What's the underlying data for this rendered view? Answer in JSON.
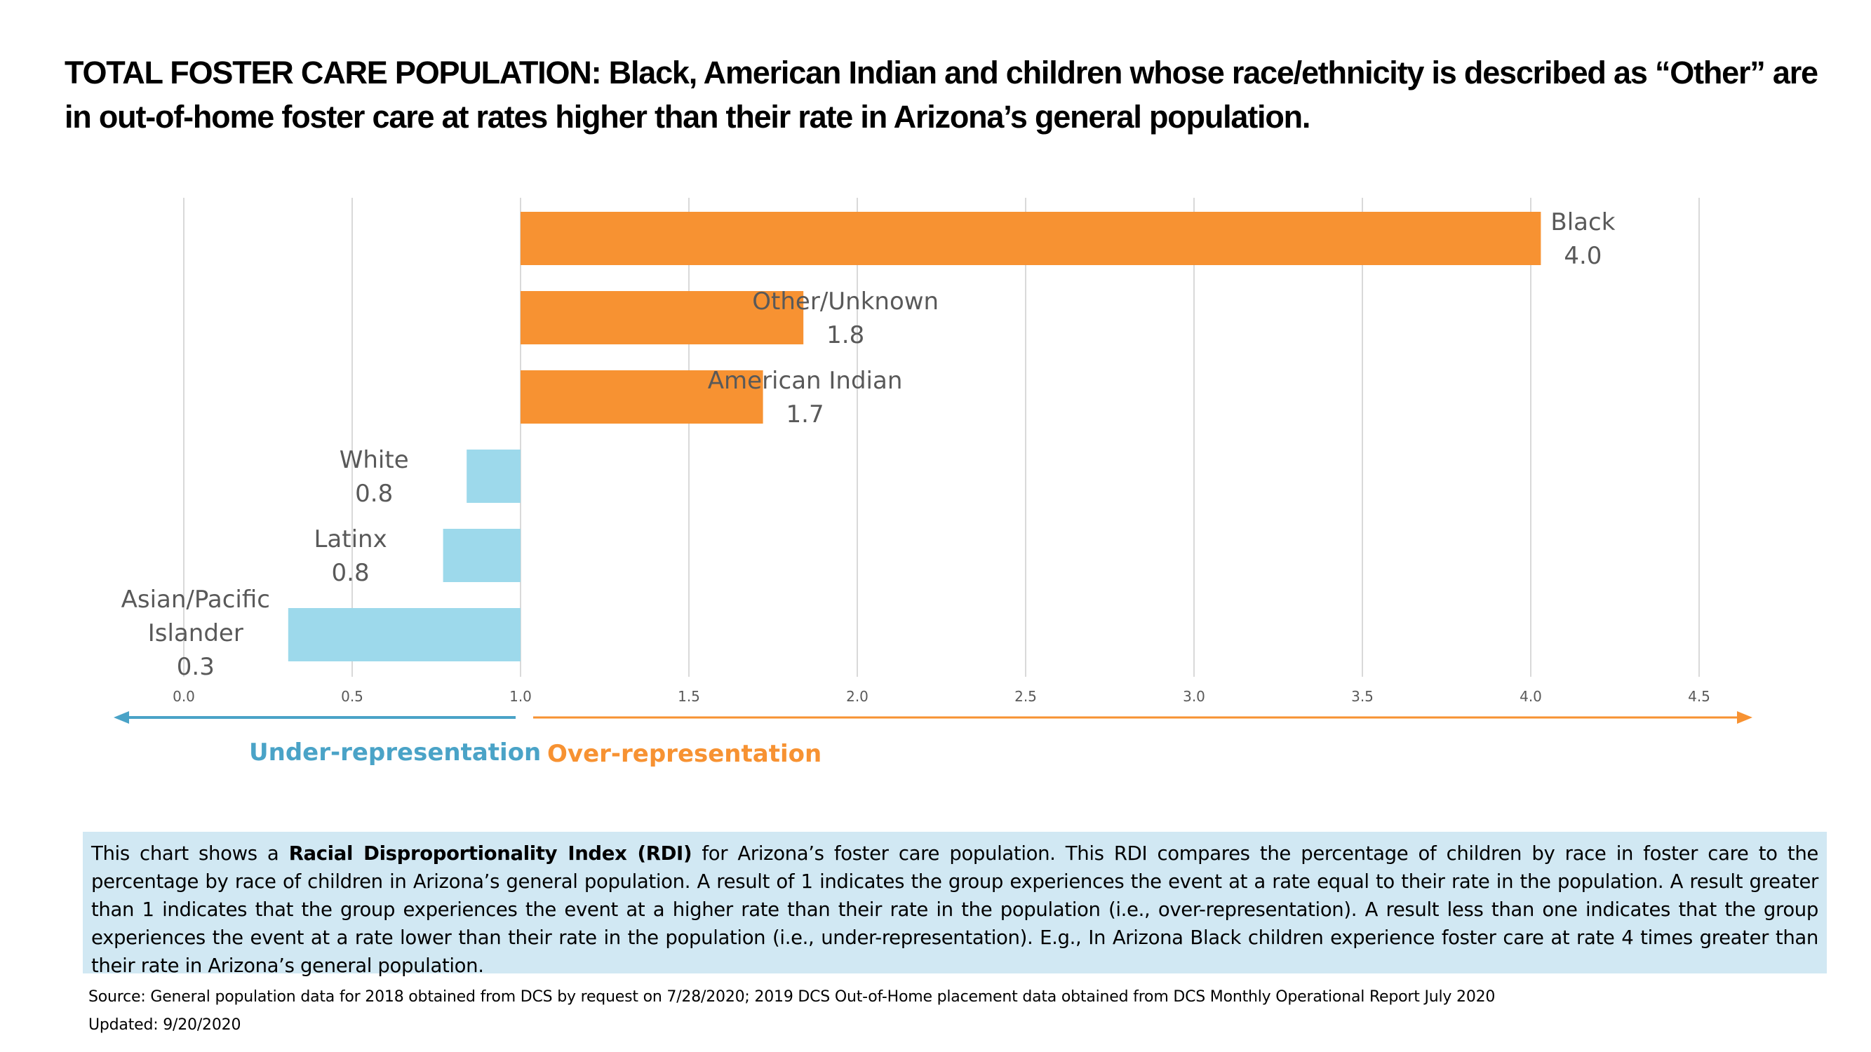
{
  "title": "TOTAL FOSTER CARE POPULATION: Black, American Indian and children whose race/ethnicity is described as “Other” are in out-of-home foster care at rates higher than their rate in Arizona’s general population.",
  "chart_data": {
    "type": "bar",
    "orientation": "horizontal",
    "baseline": 1.0,
    "xlim": [
      0,
      4.5
    ],
    "x_ticks": [
      "0.0",
      "0.5",
      "1.0",
      "1.5",
      "2.0",
      "2.5",
      "3.0",
      "3.5",
      "4.0",
      "4.5"
    ],
    "grid": true,
    "categories": [
      "Black",
      "Other/Unknown",
      "American Indian",
      "White",
      "Latinx",
      "Asian/Pacific Islander"
    ],
    "label_lines": [
      [
        "Black",
        "4.0"
      ],
      [
        "Other/Unknown",
        "1.8"
      ],
      [
        "American Indian",
        "1.7"
      ],
      [
        "White",
        "0.8"
      ],
      [
        "Latinx",
        "0.8"
      ],
      [
        "Asian/Pacific",
        "Islander",
        "0.3"
      ]
    ],
    "values": [
      4.03,
      1.84,
      1.72,
      0.84,
      0.77,
      0.31
    ],
    "value_labels": [
      "4.0",
      "1.8",
      "1.7",
      "0.8",
      "0.8",
      "0.3"
    ],
    "colors": {
      "over": "#f79232",
      "under": "#9dd9eb",
      "under_text": "#4aa3c7",
      "over_text": "#f79232",
      "grid": "#d9d9d9",
      "tick_text": "#595959",
      "label_text": "#595959"
    }
  },
  "legend": {
    "under_label": "Under-representation",
    "over_label": "Over-representation"
  },
  "note": {
    "prefix": "This chart shows a ",
    "bold": "Racial Disproportionality Index (RDI)",
    "rest": " for Arizona’s foster care population. This RDI compares the percentage of children by race in foster care to the percentage by race of children in Arizona’s general population. A result of 1 indicates the group experiences the event at a rate equal to their rate in the population. A result greater than 1 indicates that the group experiences the event at a higher rate than their rate in the population (i.e., over-representation). A result less than one indicates that the group experiences the event at a rate lower than their rate in the population (i.e., under-representation). E.g., In Arizona Black children experience foster care at rate 4 times greater than their rate in Arizona’s general population."
  },
  "source": "Source:  General population data for 2018 obtained from DCS by request on 7/28/2020; 2019 DCS Out-of-Home placement data obtained from DCS Monthly Operational Report July 2020",
  "updated": "Updated: 9/20/2020"
}
